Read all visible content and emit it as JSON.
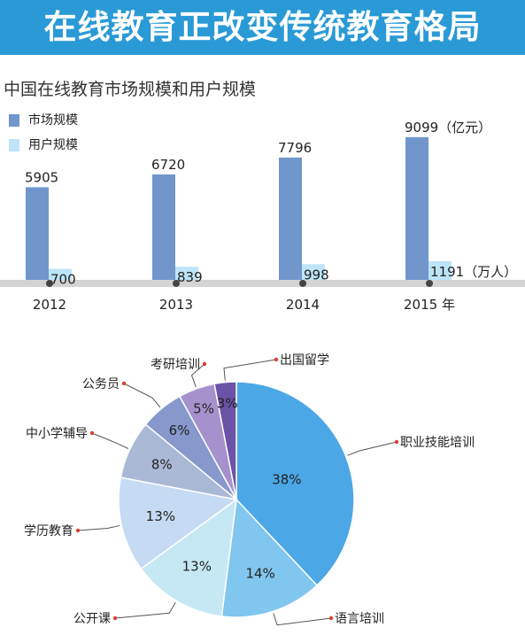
{
  "banner": {
    "title": "在线教育正改变传统教育格局"
  },
  "chart_data": [
    {
      "type": "bar",
      "title": "中国在线教育市场规模和用户规模",
      "categories": [
        "2012",
        "2013",
        "2014",
        "2015 年"
      ],
      "series": [
        {
          "name": "市场规模",
          "values": [
            5905,
            6720,
            7796,
            9099
          ],
          "color": "#7096cc",
          "labels": [
            "5905",
            "6720",
            "7796",
            "9099（亿元）"
          ]
        },
        {
          "name": "用户规模",
          "values": [
            700,
            839,
            998,
            1191
          ],
          "color": "#bde4f8",
          "labels": [
            "700",
            "839",
            "998",
            "1191（万人）"
          ]
        }
      ],
      "legend_placement": "top-left",
      "grid": false
    },
    {
      "type": "pie",
      "slices": [
        {
          "label": "职业技能培训",
          "value": 38,
          "text": "38%",
          "color": "#4ba7e6"
        },
        {
          "label": "语言培训",
          "value": 14,
          "text": "14%",
          "color": "#80c6ef"
        },
        {
          "label": "公开课",
          "value": 13,
          "text": "13%",
          "color": "#c6e8f5"
        },
        {
          "label": "学历教育",
          "value": 13,
          "text": "13%",
          "color": "#c5dbf3"
        },
        {
          "label": "中小学辅导",
          "value": 8,
          "text": "8%",
          "color": "#a9b9d5"
        },
        {
          "label": "公务员",
          "value": 6,
          "text": "6%",
          "color": "#8698cc"
        },
        {
          "label": "考研培训",
          "value": 5,
          "text": "5%",
          "color": "#a592cd"
        },
        {
          "label": "出国留学",
          "value": 3,
          "text": "3%",
          "color": "#6a52a6"
        }
      ]
    }
  ],
  "colors": {
    "banner": "#2a9ad6",
    "axis": "#d4d4d4",
    "leader": "#555555",
    "dot": "#d9432e"
  }
}
